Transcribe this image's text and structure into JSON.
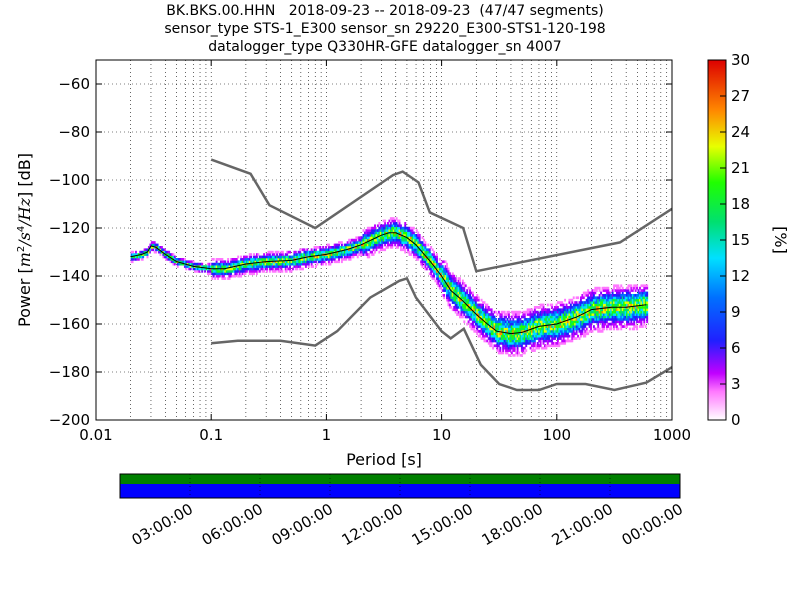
{
  "title_lines": [
    "BK.BKS.00.HHN   2018-09-23 -- 2018-09-23  (47/47 segments)",
    "sensor_type STS-1_E300 sensor_sn 29220_E300-STS1-120-198",
    "datalogger_type Q330HR-GFE datalogger_sn 4007"
  ],
  "chart_data": {
    "type": "heatmap",
    "xlabel": "Period [s]",
    "ylabel": "Power [m²/s⁴/Hz] [dB]",
    "xscale": "log",
    "xlim": [
      0.01,
      1000
    ],
    "ylim": [
      -200,
      -50
    ],
    "x_tick_labels": [
      "0.01",
      "0.1",
      "1",
      "10",
      "100",
      "1000"
    ],
    "y_ticks": [
      -200,
      -180,
      -160,
      -140,
      -120,
      -100,
      -80,
      -60
    ],
    "grid": true,
    "colorbar": {
      "label": "[%]",
      "range": [
        0,
        30
      ],
      "ticks": [
        0,
        3,
        6,
        9,
        12,
        15,
        18,
        21,
        24,
        27,
        30
      ]
    },
    "nlnm": [
      [
        0.1,
        -168
      ],
      [
        0.17,
        -167
      ],
      [
        0.4,
        -167
      ],
      [
        0.8,
        -169
      ],
      [
        1.24,
        -163
      ],
      [
        2.4,
        -149
      ],
      [
        4.3,
        -142
      ],
      [
        5.0,
        -141
      ],
      [
        6.0,
        -149
      ],
      [
        10,
        -163
      ],
      [
        12,
        -166
      ],
      [
        15.6,
        -162
      ],
      [
        21.9,
        -177
      ],
      [
        31.6,
        -185
      ],
      [
        45,
        -187.5
      ],
      [
        70,
        -187.5
      ],
      [
        100,
        -185
      ],
      [
        178,
        -185
      ],
      [
        316,
        -187.5
      ],
      [
        600,
        -184.4
      ],
      [
        1000,
        -178
      ]
    ],
    "nhnm": [
      [
        0.1,
        -91.5
      ],
      [
        0.22,
        -97.4
      ],
      [
        0.32,
        -110.5
      ],
      [
        0.8,
        -120
      ],
      [
        3.8,
        -97.9
      ],
      [
        4.6,
        -96.5
      ],
      [
        6.3,
        -101
      ],
      [
        7.9,
        -113.5
      ],
      [
        15.4,
        -120
      ],
      [
        20,
        -138
      ],
      [
        354,
        -126
      ],
      [
        1000,
        -112
      ]
    ],
    "mean_curve": [
      [
        0.02,
        -132
      ],
      [
        0.025,
        -131
      ],
      [
        0.028,
        -130
      ],
      [
        0.03,
        -127.5
      ],
      [
        0.033,
        -128
      ],
      [
        0.04,
        -131
      ],
      [
        0.05,
        -134
      ],
      [
        0.07,
        -136
      ],
      [
        0.1,
        -137
      ],
      [
        0.13,
        -137
      ],
      [
        0.2,
        -135
      ],
      [
        0.3,
        -134
      ],
      [
        0.5,
        -133.5
      ],
      [
        0.7,
        -132
      ],
      [
        1,
        -131
      ],
      [
        1.5,
        -129
      ],
      [
        2,
        -127
      ],
      [
        3,
        -123
      ],
      [
        3.5,
        -122
      ],
      [
        4,
        -122
      ],
      [
        5,
        -124
      ],
      [
        6,
        -127
      ],
      [
        8,
        -134
      ],
      [
        10,
        -140
      ],
      [
        12,
        -146
      ],
      [
        15,
        -150
      ],
      [
        20,
        -156
      ],
      [
        25,
        -160
      ],
      [
        30,
        -163
      ],
      [
        40,
        -164
      ],
      [
        50,
        -163.5
      ],
      [
        70,
        -161
      ],
      [
        100,
        -160
      ],
      [
        150,
        -157
      ],
      [
        200,
        -154
      ],
      [
        300,
        -153
      ],
      [
        400,
        -153
      ],
      [
        600,
        -152
      ]
    ],
    "timeline": {
      "tick_labels": [
        "03:00:00",
        "06:00:00",
        "09:00:00",
        "12:00:00",
        "15:00:00",
        "18:00:00",
        "21:00:00",
        "00:00:00"
      ],
      "data_coverage_color": "#0000ff",
      "gap_bar_color": "#008000"
    }
  }
}
